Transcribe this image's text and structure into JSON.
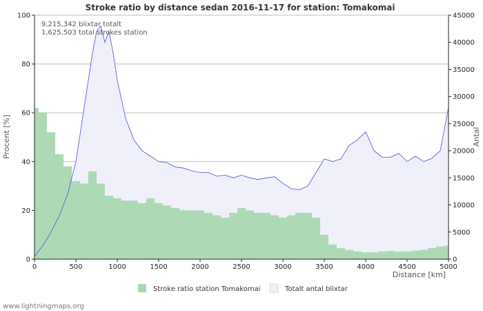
{
  "chart_data": {
    "type": "bar+area",
    "title": "Stroke ratio by distance sedan 2016-11-17 for station: Tomakomai",
    "info_lines": [
      "9,215,342 blixtar totalt",
      "1,625,503 total strokes station"
    ],
    "xlabel": "Distance   [km]",
    "ylabel_left": "Procent   [%]",
    "ylabel_right": "Antal",
    "xlim": [
      0,
      5000
    ],
    "ylim_left": [
      0,
      100
    ],
    "ylim_right": [
      0,
      45000
    ],
    "x_ticks": [
      0,
      500,
      1000,
      1500,
      2000,
      2500,
      3000,
      3500,
      4000,
      4500,
      5000
    ],
    "y_ticks_left": [
      0,
      20,
      40,
      60,
      80,
      100
    ],
    "y_ticks_right": [
      0,
      5000,
      10000,
      15000,
      20000,
      25000,
      30000,
      35000,
      40000,
      45000
    ],
    "grid": true,
    "legend_position": "bottom",
    "series": [
      {
        "name": "Stroke ratio station Tomakomai",
        "kind": "bar",
        "axis": "left",
        "color": "#a8d8b0",
        "x": [
          0,
          100,
          200,
          300,
          400,
          500,
          600,
          700,
          800,
          900,
          1000,
          1100,
          1200,
          1300,
          1400,
          1500,
          1600,
          1700,
          1800,
          1900,
          2000,
          2100,
          2200,
          2300,
          2400,
          2500,
          2600,
          2700,
          2800,
          2900,
          3000,
          3100,
          3200,
          3300,
          3400,
          3500,
          3600,
          3700,
          3800,
          3900,
          4000,
          4100,
          4200,
          4300,
          4400,
          4500,
          4600,
          4700,
          4800,
          4900,
          5000
        ],
        "values": [
          62,
          60,
          52,
          43,
          38,
          32,
          31,
          36,
          31,
          26,
          25,
          24,
          24,
          23,
          25,
          23,
          22,
          21,
          20,
          20,
          20,
          19,
          18,
          17,
          19,
          21,
          20,
          19,
          19,
          18,
          17,
          18,
          19,
          19,
          17,
          10,
          6,
          4.5,
          3.8,
          3.2,
          2.8,
          2.8,
          3.2,
          3.4,
          3.1,
          3.2,
          3.5,
          3.8,
          4.5,
          5.2,
          5.5
        ]
      },
      {
        "name": "Totalt antal blixtar",
        "kind": "area",
        "axis": "right",
        "color": "#f0f0fb",
        "line_color": "#4a4ad8",
        "x": [
          0,
          100,
          200,
          300,
          400,
          500,
          600,
          700,
          750,
          800,
          850,
          900,
          950,
          1000,
          1100,
          1200,
          1300,
          1400,
          1500,
          1600,
          1700,
          1800,
          1900,
          2000,
          2100,
          2200,
          2300,
          2400,
          2500,
          2600,
          2700,
          2800,
          2900,
          3000,
          3100,
          3200,
          3300,
          3400,
          3500,
          3600,
          3700,
          3800,
          3900,
          4000,
          4100,
          4200,
          4300,
          4400,
          4500,
          4600,
          4700,
          4800,
          4900,
          5000
        ],
        "values": [
          500,
          2500,
          5000,
          8000,
          12000,
          18000,
          28000,
          38000,
          42000,
          43000,
          40000,
          42000,
          38000,
          33000,
          26000,
          22000,
          20000,
          19000,
          18000,
          17800,
          17000,
          16800,
          16300,
          16000,
          16000,
          15300,
          15500,
          15000,
          15500,
          15000,
          14700,
          15000,
          15200,
          14000,
          13000,
          12800,
          13500,
          16000,
          18500,
          18000,
          18500,
          21000,
          22000,
          23500,
          20000,
          18800,
          18800,
          19500,
          18000,
          19000,
          18000,
          18600,
          20000,
          28000
        ]
      }
    ]
  },
  "credit": "www.lightningmaps.org"
}
